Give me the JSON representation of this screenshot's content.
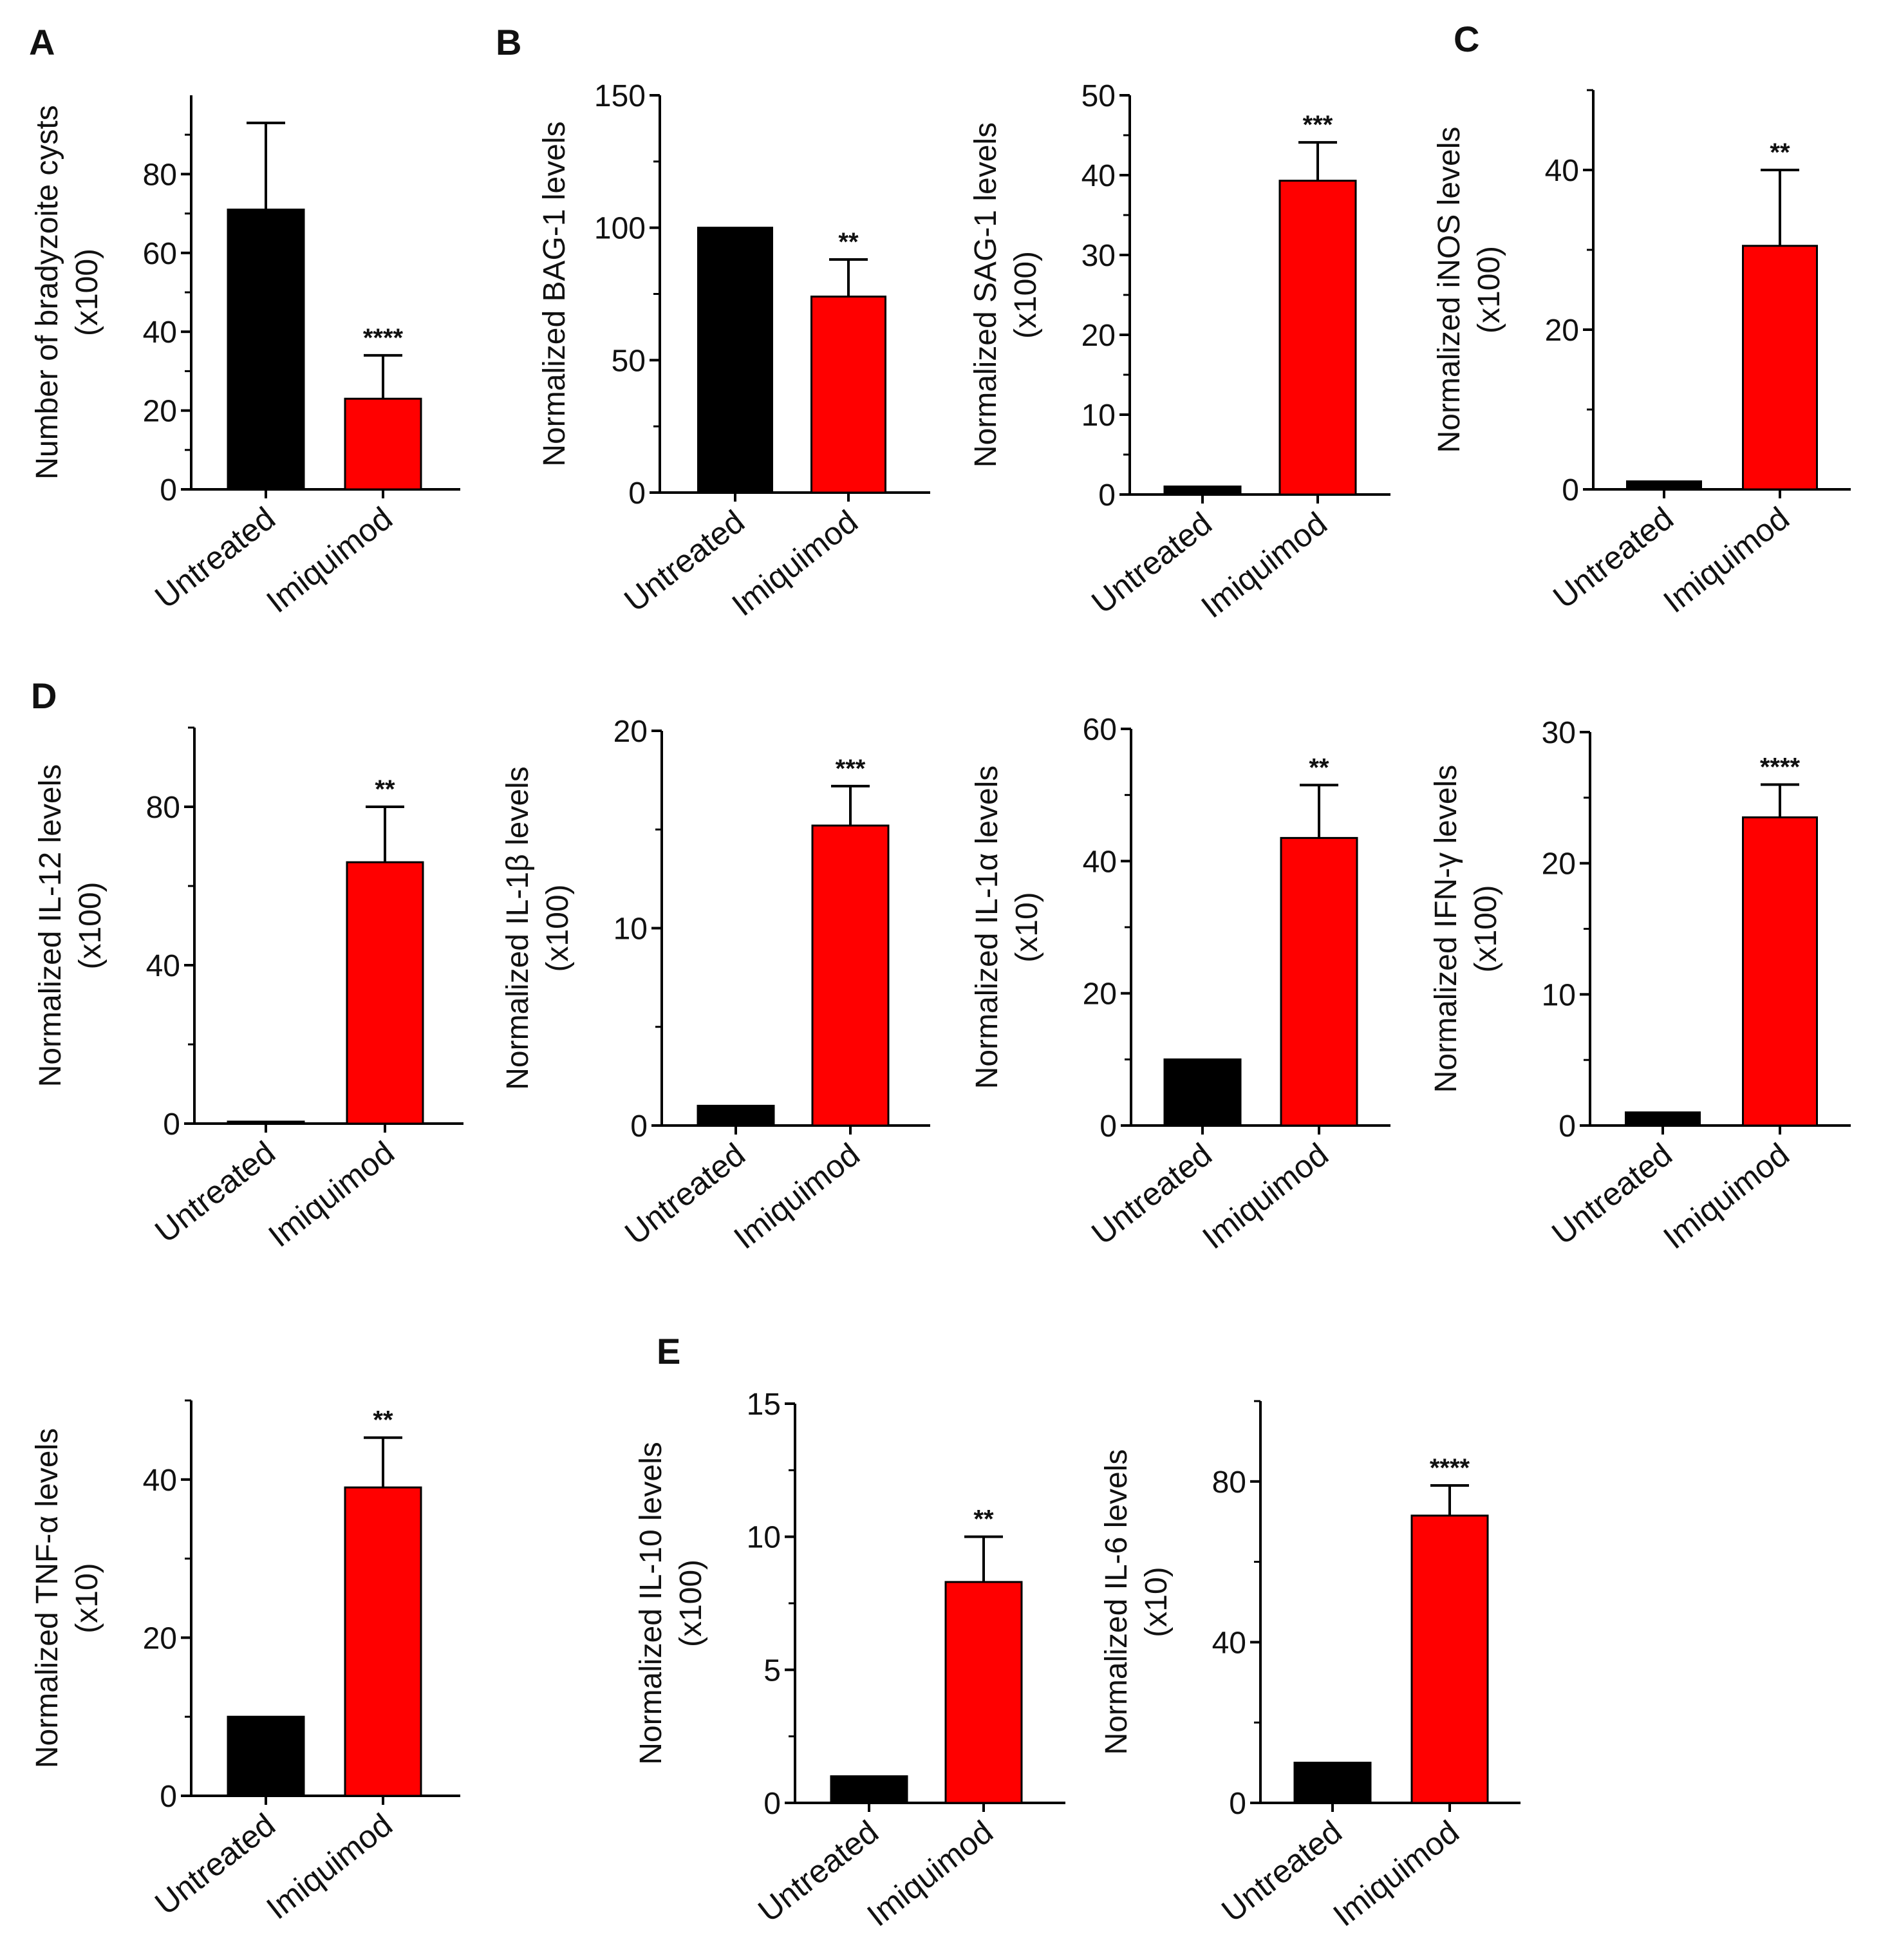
{
  "figure": {
    "panel_letters": [
      "A",
      "B",
      "C",
      "D",
      "E"
    ]
  },
  "chart_data": [
    {
      "id": "A1",
      "panel": "A",
      "type": "bar",
      "ylabel": [
        "Number of bradyzoite cysts",
        "(x100)"
      ],
      "categories": [
        "Untreated",
        "Imiquimod"
      ],
      "values": [
        71,
        23
      ],
      "errors": [
        22,
        11
      ],
      "significance": [
        "",
        "****"
      ],
      "ylim": [
        0,
        100
      ],
      "yticks": [
        0,
        20,
        40,
        60,
        80
      ]
    },
    {
      "id": "B1",
      "panel": "B",
      "type": "bar",
      "ylabel": [
        "Normalized BAG-1 levels"
      ],
      "categories": [
        "Untreated",
        "Imiquimod"
      ],
      "values": [
        100,
        74
      ],
      "errors": [
        0,
        14
      ],
      "significance": [
        "",
        "**"
      ],
      "ylim": [
        0,
        150
      ],
      "yticks": [
        0,
        50,
        100,
        150
      ]
    },
    {
      "id": "B2",
      "panel": "",
      "type": "bar",
      "ylabel": [
        "Normalized SAG-1 levels",
        "(x100)"
      ],
      "categories": [
        "Untreated",
        "Imiquimod"
      ],
      "values": [
        1,
        39.3
      ],
      "errors": [
        0,
        4.8
      ],
      "significance": [
        "",
        "***"
      ],
      "ylim": [
        0,
        50
      ],
      "yticks": [
        0,
        10,
        20,
        30,
        40,
        50
      ]
    },
    {
      "id": "C1",
      "panel": "C",
      "type": "bar",
      "ylabel": [
        "Normalized iNOS levels",
        "(x100)"
      ],
      "categories": [
        "Untreated",
        "Imiquimod"
      ],
      "values": [
        1,
        30.5
      ],
      "errors": [
        0,
        9.5
      ],
      "significance": [
        "",
        "**"
      ],
      "ylim": [
        0,
        50
      ],
      "yticks": [
        0,
        20,
        40
      ]
    },
    {
      "id": "D1",
      "panel": "D",
      "type": "bar",
      "ylabel": [
        "Normalized IL-12 levels",
        "(x100)"
      ],
      "categories": [
        "Untreated",
        "Imiquimod"
      ],
      "values": [
        0.5,
        66
      ],
      "errors": [
        0,
        14
      ],
      "significance": [
        "",
        "**"
      ],
      "ylim": [
        0,
        100
      ],
      "yticks": [
        0,
        40,
        80
      ]
    },
    {
      "id": "D2",
      "panel": "",
      "type": "bar",
      "ylabel": [
        "Normalized IL-1β levels",
        "(x100)"
      ],
      "categories": [
        "Untreated",
        "Imiquimod"
      ],
      "values": [
        1,
        15.2
      ],
      "errors": [
        0,
        2
      ],
      "significance": [
        "",
        "***"
      ],
      "ylim": [
        0,
        20
      ],
      "yticks": [
        0,
        10,
        20
      ]
    },
    {
      "id": "D3",
      "panel": "",
      "type": "bar",
      "ylabel": [
        "Normalized IL-1α levels",
        "(x10)"
      ],
      "categories": [
        "Untreated",
        "Imiquimod"
      ],
      "values": [
        10,
        43.5
      ],
      "errors": [
        0,
        8
      ],
      "significance": [
        "",
        "**"
      ],
      "ylim": [
        0,
        60
      ],
      "yticks": [
        0,
        20,
        40,
        60
      ]
    },
    {
      "id": "D4",
      "panel": "",
      "type": "bar",
      "ylabel": [
        "Normalized IFN-γ levels",
        "(x100)"
      ],
      "categories": [
        "Untreated",
        "Imiquimod"
      ],
      "values": [
        1,
        23.5
      ],
      "errors": [
        0,
        2.5
      ],
      "significance": [
        "",
        "****"
      ],
      "ylim": [
        0,
        30
      ],
      "yticks": [
        0,
        10,
        20,
        30
      ]
    },
    {
      "id": "D5",
      "panel": "",
      "type": "bar",
      "ylabel": [
        "Normalized TNF-α levels",
        "(x10)"
      ],
      "categories": [
        "Untreated",
        "Imiquimod"
      ],
      "values": [
        10,
        39
      ],
      "errors": [
        0,
        6.3
      ],
      "significance": [
        "",
        "**"
      ],
      "ylim": [
        0,
        50
      ],
      "yticks": [
        0,
        20,
        40
      ]
    },
    {
      "id": "E1",
      "panel": "E",
      "type": "bar",
      "ylabel": [
        "Normalized IL-10 levels",
        "(x100)"
      ],
      "categories": [
        "Untreated",
        "Imiquimod"
      ],
      "values": [
        1,
        8.3
      ],
      "errors": [
        0,
        1.7
      ],
      "significance": [
        "",
        "**"
      ],
      "ylim": [
        0,
        15
      ],
      "yticks": [
        0,
        5,
        10,
        15
      ]
    },
    {
      "id": "E2",
      "panel": "",
      "type": "bar",
      "ylabel": [
        "Normalized IL-6 levels",
        "(x10)"
      ],
      "categories": [
        "Untreated",
        "Imiquimod"
      ],
      "values": [
        10,
        71.5
      ],
      "errors": [
        0,
        7.5
      ],
      "significance": [
        "",
        "****"
      ],
      "ylim": [
        0,
        100
      ],
      "yticks": [
        0,
        40,
        80
      ]
    }
  ],
  "colors": {
    "untreated": "#000000",
    "imiquimod": "#ff0000",
    "axis": "#000000",
    "text": "#111111"
  }
}
